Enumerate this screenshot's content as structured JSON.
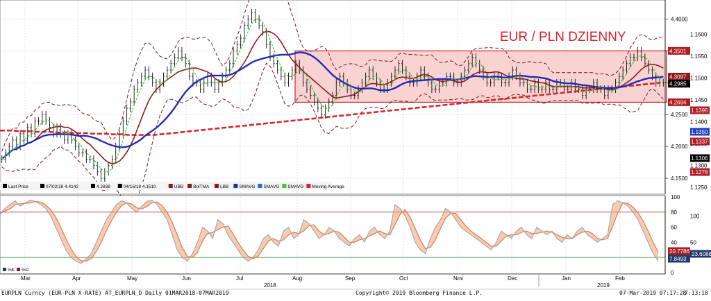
{
  "chart_data": {
    "type": "line",
    "title": "EUR / PLN DZIENNY",
    "y_ticks": [
      "4.1500",
      "4.2000",
      "4.2500",
      "4.3000",
      "4.3500",
      "4.4000"
    ],
    "y_ticks_secondary": [
      "1.1250",
      "1.1300",
      "1.1350",
      "1.1400",
      "1.1450",
      "1.1500",
      "1.1550",
      "1.1600"
    ],
    "y_range": [
      4.125,
      4.43
    ],
    "x_ticks": [
      "Mar",
      "Apr",
      "May",
      "Jun",
      "Jul",
      "Aug",
      "Sep",
      "Oct",
      "Nov",
      "Dec",
      "Jan",
      "Feb"
    ],
    "year_labels": [
      "2018",
      "2019"
    ],
    "price_tags": [
      {
        "text": "4.3501",
        "value": 4.3501,
        "color": "#b01e23"
      },
      {
        "text": "4.3097",
        "value": 4.3097,
        "color": "#8b1a1a"
      },
      {
        "text": "4.2985",
        "value": 4.2985,
        "color": "#000000"
      },
      {
        "text": "4.2694",
        "value": 4.2694,
        "color": "#b01e23"
      }
    ],
    "secondary_tags": [
      {
        "text": "1.1395",
        "color": "#b01e23"
      },
      {
        "text": "1.1350",
        "color": "#1f3fbf"
      },
      {
        "text": "1.1337",
        "color": "#b01e23"
      },
      {
        "text": "1.1306",
        "color": "#000000"
      },
      {
        "text": "1.1278",
        "color": "#b01e23"
      }
    ],
    "legend": [
      {
        "label": "Last Price",
        "color": "#000000"
      },
      {
        "label": "07/02/18 4.4142",
        "color": "#000000"
      },
      {
        "label": "4.2838",
        "color": "#000000"
      },
      {
        "label": "04/16/18 4.1510",
        "color": "#000000"
      },
      {
        "label": "UBB",
        "color": "#8b1a1a"
      },
      {
        "label": "BolTMA",
        "color": "#8b1a1a"
      },
      {
        "label": "LBB",
        "color": "#8b1a1a"
      },
      {
        "label": "SMAVG",
        "color": "#1f2bb8"
      },
      {
        "label": "SMAVG",
        "color": "#1f6fd1"
      },
      {
        "label": "SMAVG",
        "color": "#33cc33"
      },
      {
        "label": "Moving Average",
        "color": "#d8252a"
      }
    ],
    "range_box": {
      "start_index": 98,
      "end_index": 230,
      "low": 4.2694,
      "high": 4.3501
    },
    "price_series": [
      4.18,
      4.19,
      4.2,
      4.21,
      4.2,
      4.22,
      4.21,
      4.23,
      4.22,
      4.24,
      4.24,
      4.25,
      4.24,
      4.23,
      4.22,
      4.23,
      4.22,
      4.21,
      4.22,
      4.21,
      4.2,
      4.19,
      4.19,
      4.18,
      4.18,
      4.17,
      4.16,
      4.15,
      4.16,
      4.17,
      4.18,
      4.2,
      4.22,
      4.24,
      4.26,
      4.27,
      4.29,
      4.3,
      4.31,
      4.32,
      4.31,
      4.3,
      4.29,
      4.3,
      4.31,
      4.32,
      4.33,
      4.34,
      4.35,
      4.34,
      4.33,
      4.31,
      4.3,
      4.3,
      4.29,
      4.3,
      4.31,
      4.3,
      4.29,
      4.3,
      4.31,
      4.32,
      4.33,
      4.35,
      4.36,
      4.37,
      4.39,
      4.4,
      4.41,
      4.4,
      4.39,
      4.38,
      4.36,
      4.34,
      4.33,
      4.32,
      4.31,
      4.3,
      4.31,
      4.32,
      4.33,
      4.32,
      4.3,
      4.29,
      4.28,
      4.27,
      4.26,
      4.25,
      4.26,
      4.27,
      4.28,
      4.3,
      4.31,
      4.3,
      4.29,
      4.28,
      4.28,
      4.29,
      4.3,
      4.31,
      4.32,
      4.31,
      4.3,
      4.29,
      4.29,
      4.3,
      4.31,
      4.32,
      4.33,
      4.32,
      4.31,
      4.3,
      4.3,
      4.31,
      4.32,
      4.31,
      4.3,
      4.29,
      4.29,
      4.3,
      4.3,
      4.31,
      4.31,
      4.3,
      4.3,
      4.31,
      4.32,
      4.33,
      4.34,
      4.33,
      4.32,
      4.31,
      4.3,
      4.3,
      4.31,
      4.31,
      4.3,
      4.3,
      4.31,
      4.32,
      4.31,
      4.3,
      4.3,
      4.29,
      4.29,
      4.3,
      4.29,
      4.29,
      4.3,
      4.29,
      4.29,
      4.3,
      4.3,
      4.29,
      4.29,
      4.3,
      4.29,
      4.29,
      4.28,
      4.29,
      4.29,
      4.3,
      4.29,
      4.29,
      4.28,
      4.29,
      4.29,
      4.3,
      4.31,
      4.32,
      4.33,
      4.34,
      4.34,
      4.35,
      4.34,
      4.33,
      4.32,
      4.31,
      4.3,
      4.3,
      4.3
    ],
    "ma_long": [
      4.225,
      4.225,
      4.225,
      4.224,
      4.224,
      4.224,
      4.223,
      4.223,
      4.223,
      4.222,
      4.222,
      4.222,
      4.221,
      4.221,
      4.221,
      4.22,
      4.22,
      4.22,
      4.219,
      4.219,
      4.219,
      4.218,
      4.218,
      4.218,
      4.218,
      4.218,
      4.219,
      4.22,
      4.221,
      4.222,
      4.223,
      4.224,
      4.225,
      4.226,
      4.227,
      4.228,
      4.229,
      4.23,
      4.231,
      4.232,
      4.233,
      4.234,
      4.235,
      4.236,
      4.237,
      4.238,
      4.239,
      4.24,
      4.241,
      4.242,
      4.243,
      4.244,
      4.245,
      4.246,
      4.247,
      4.248,
      4.249,
      4.25,
      4.251,
      4.252,
      4.253,
      4.254,
      4.255,
      4.256,
      4.257,
      4.258,
      4.259,
      4.26,
      4.261,
      4.262,
      4.263,
      4.264,
      4.265,
      4.266,
      4.267,
      4.268,
      4.269,
      4.27,
      4.271,
      4.272,
      4.273,
      4.274,
      4.275,
      4.276,
      4.277,
      4.278,
      4.279,
      4.28,
      4.281,
      4.282,
      4.283,
      4.284,
      4.285,
      4.286,
      4.287,
      4.288,
      4.289,
      4.29,
      4.291,
      4.292,
      4.293,
      4.294,
      4.295,
      4.296,
      4.297,
      4.298,
      4.299,
      4.3
    ],
    "rsi": [
      78,
      85,
      90,
      95,
      88,
      92,
      96,
      94,
      90,
      85,
      75,
      60,
      45,
      30,
      20,
      15,
      12,
      18,
      25,
      40,
      55,
      70,
      80,
      90,
      95,
      92,
      85,
      80,
      88,
      94,
      96,
      90,
      80,
      70,
      50,
      30,
      20,
      15,
      25,
      40,
      60,
      55,
      45,
      70,
      65,
      50,
      40,
      30,
      20,
      15,
      20,
      30,
      45,
      50,
      40,
      35,
      55,
      60,
      45,
      50,
      70,
      65,
      55,
      45,
      50,
      60,
      55,
      45,
      40,
      35,
      45,
      50,
      40,
      55,
      60,
      50,
      45,
      55,
      90,
      85,
      75,
      60,
      40,
      30,
      25,
      45,
      60,
      70,
      85,
      80,
      70,
      60,
      55,
      50,
      45,
      40,
      35,
      30,
      40,
      55,
      50,
      45,
      55,
      60,
      50,
      45,
      60,
      55,
      50,
      55,
      45,
      40,
      50,
      45,
      55,
      60,
      50,
      45,
      40,
      45,
      50,
      90,
      95,
      92,
      88,
      80,
      70,
      55,
      40,
      25,
      15
    ]
  },
  "footer": {
    "left": "EURPLN Curncy (EUR-PLN X-RATE) AT_EURPLN_D  Daily 01MAR2018-07MAR2019",
    "center": "Copyright© 2019 Bloomberg Finance L.P.",
    "right": "07-Mar-2019 07:17:28",
    "right2": "7:13:18"
  },
  "oscillator": {
    "y_ticks": [
      "0",
      "20",
      "40",
      "60",
      "80",
      "100"
    ],
    "secondary_ticks": [
      "50",
      "100"
    ],
    "tags": [
      {
        "text": "20.7786",
        "color": "#b01e23"
      },
      {
        "text": "23.6088",
        "color": "#1f3a6e"
      },
      {
        "text": "7.8493",
        "color": "#1f3a6e"
      }
    ],
    "legend": [
      {
        "label": "%K",
        "color": "#1f3a6e"
      },
      {
        "label": "%D",
        "color": "#8b1a1a"
      }
    ]
  }
}
